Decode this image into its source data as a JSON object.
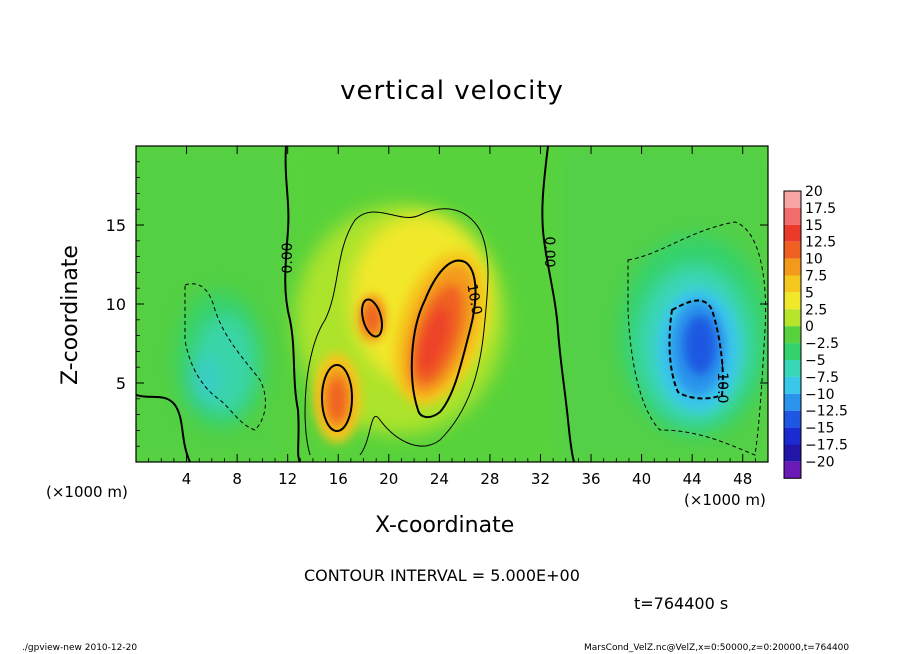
{
  "page": {
    "x_unit": "(×1000 m)",
    "interval_label": "CONTOUR INTERVAL = 5.000E+00",
    "time_label": "t=764400 s",
    "footer_left": "./gpview-new  2010-12-20",
    "footer_right": "MarsCond_VelZ.nc@VelZ,x=0:50000,z=0:20000,t=764400"
  },
  "chart_data": {
    "type": "heatmap",
    "title": "vertical velocity",
    "xlabel": "X-coordinate",
    "ylabel": "Z-coordinate",
    "xlim": [
      0,
      50
    ],
    "ylim": [
      0,
      20
    ],
    "x_ticks": [
      "4",
      "8",
      "12",
      "16",
      "20",
      "24",
      "28",
      "32",
      "36",
      "40",
      "44",
      "48"
    ],
    "y_ticks": [
      "5",
      "10",
      "15"
    ],
    "colorbar": {
      "labels": [
        "20",
        "17.5",
        "15",
        "12.5",
        "10",
        "7.5",
        "5",
        "2.5",
        "0",
        "−2.5",
        "−5",
        "−7.5",
        "−10",
        "−12.5",
        "−15",
        "−17.5",
        "−20"
      ],
      "colors": [
        "#f7a5a5",
        "#f26c6c",
        "#ec3a2a",
        "#f06020",
        "#f39a1c",
        "#f5c81e",
        "#f2e82a",
        "#b6e52c",
        "#58d23c",
        "#34d26c",
        "#3ad6b8",
        "#3ac8ea",
        "#2a94ec",
        "#1e58e2",
        "#1c2ad2",
        "#2216a8",
        "#6a1ab6"
      ]
    },
    "contour_labels": [
      "0.00",
      "10.0",
      "0.00",
      "−10.0"
    ],
    "contour_interval": 5.0,
    "features": [
      {
        "kind": "updraft",
        "x": 15.8,
        "z": 4.5,
        "peak": 12.5
      },
      {
        "kind": "updraft",
        "x": 18.5,
        "z": 9.2,
        "peak": 10
      },
      {
        "kind": "updraft",
        "x": 23.5,
        "z": 7.5,
        "peak": 15
      },
      {
        "kind": "downdraft",
        "x": 44.5,
        "z": 7.0,
        "peak": -12.5
      },
      {
        "kind": "downdraft",
        "x": 7.5,
        "z": 6.5,
        "peak": -5
      }
    ]
  }
}
